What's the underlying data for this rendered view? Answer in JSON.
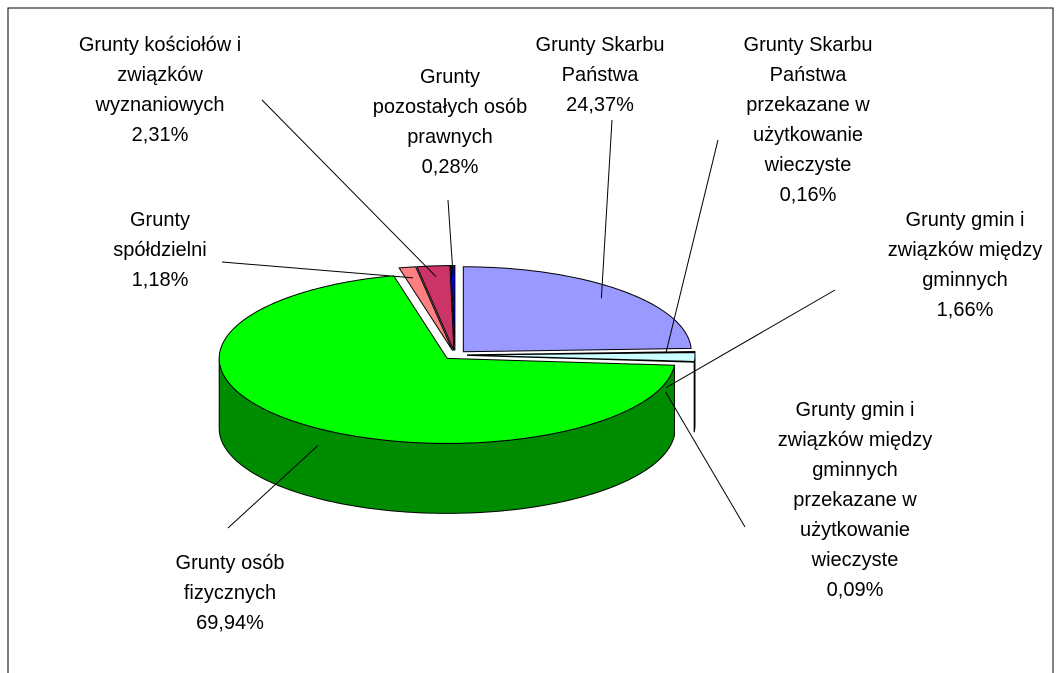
{
  "chart_data": {
    "type": "pie",
    "categories": [
      "Grunty Skarbu Państwa",
      "Grunty Skarbu Państwa przekazane w użytkowanie wieczyste",
      "Grunty gmin i związków między gminnych",
      "Grunty gmin i związków między gminnych przekazane w użytkowanie wieczyste",
      "Grunty osób fizycznych",
      "Grunty spółdzielni",
      "Grunty kościołów i związków wyznaniowych",
      "Grunty pozostałych osób prawnych"
    ],
    "values": [
      24.37,
      0.16,
      1.66,
      0.09,
      69.94,
      1.18,
      2.31,
      0.28
    ],
    "value_labels": [
      "24,37%",
      "0,16%",
      "1,66%",
      "0,09%",
      "69,94%",
      "1,18%",
      "2,31%",
      "0,28%"
    ],
    "colors": [
      "#9999ff",
      "#ffffcc",
      "#ccffff",
      "#660066",
      "#00ff00",
      "#ff8080",
      "#cc3366",
      "#0000ff"
    ]
  }
}
